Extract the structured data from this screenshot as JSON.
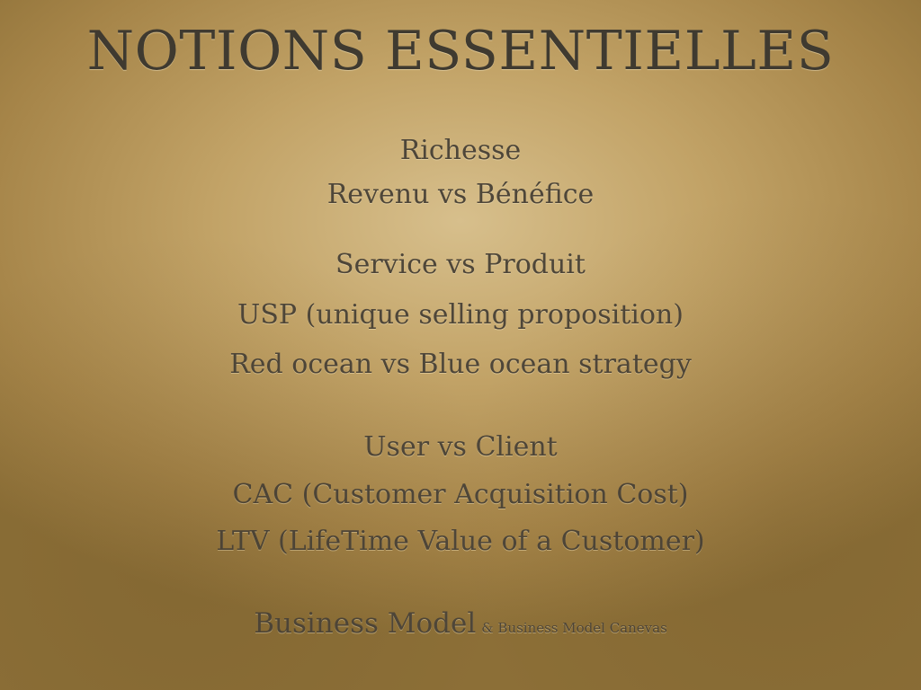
{
  "slide": {
    "title": "NOTIONS ESSENTIELLES",
    "items": [
      "Richesse",
      "Revenu vs Bénéfice",
      "Service vs Produit",
      "USP (unique selling proposition)",
      "Red ocean vs Blue ocean strategy",
      "User vs Client",
      "CAC (Customer Acquisition Cost)",
      "LTV (LifeTime Value of a Customer)"
    ],
    "business_model": {
      "main": "Business Model",
      "sub": "& Business Model Canevas"
    }
  }
}
